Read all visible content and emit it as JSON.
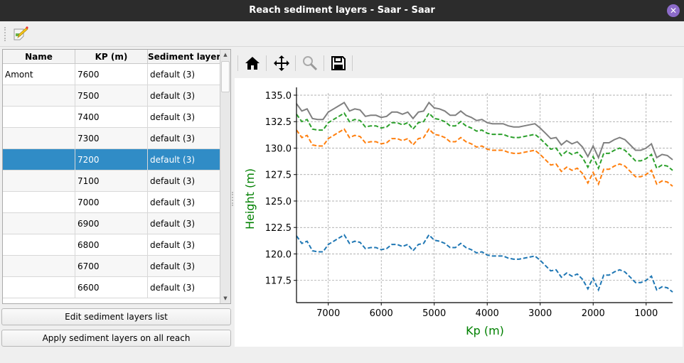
{
  "window": {
    "title": "Reach sediment layers - Saar - Saar",
    "close_icon": "close-icon"
  },
  "toolbar": {
    "edit_icon": "edit-note-icon"
  },
  "table": {
    "headers": [
      "Name",
      "KP (m)",
      "Sediment layers"
    ],
    "rows": [
      {
        "name": "Amont",
        "kp": "7600",
        "layers": "default (3)"
      },
      {
        "name": "",
        "kp": "7500",
        "layers": "default (3)"
      },
      {
        "name": "",
        "kp": "7400",
        "layers": "default (3)"
      },
      {
        "name": "",
        "kp": "7300",
        "layers": "default (3)"
      },
      {
        "name": "",
        "kp": "7200",
        "layers": "default (3)"
      },
      {
        "name": "",
        "kp": "7100",
        "layers": "default (3)"
      },
      {
        "name": "",
        "kp": "7000",
        "layers": "default (3)"
      },
      {
        "name": "",
        "kp": "6900",
        "layers": "default (3)"
      },
      {
        "name": "",
        "kp": "6800",
        "layers": "default (3)"
      },
      {
        "name": "",
        "kp": "6700",
        "layers": "default (3)"
      },
      {
        "name": "",
        "kp": "6600",
        "layers": "default (3)"
      }
    ],
    "selected_kp": "7200",
    "selection_color": "#308cc6"
  },
  "buttons": {
    "edit_list": "Edit sediment layers list",
    "apply_all": "Apply sediment layers on all reach"
  },
  "plot_toolbar": {
    "icons": [
      "home-icon",
      "pan-icon",
      "zoom-icon",
      "save-icon"
    ]
  },
  "chart_data": {
    "type": "line",
    "xlabel": "Kp (m)",
    "ylabel": "Height (m)",
    "label_color": "#008000",
    "xlim": [
      7600,
      500
    ],
    "ylim": [
      115.4,
      135.2
    ],
    "xticks": [
      7000,
      6000,
      5000,
      4000,
      3000,
      2000,
      1000
    ],
    "yticks": [
      117.5,
      120.0,
      122.5,
      125.0,
      127.5,
      130.0,
      132.5,
      135.0
    ],
    "grid": true,
    "x": [
      7600,
      7500,
      7400,
      7300,
      7200,
      7100,
      7000,
      6900,
      6800,
      6700,
      6600,
      6500,
      6400,
      6300,
      6200,
      6100,
      6000,
      5900,
      5800,
      5700,
      5600,
      5500,
      5400,
      5300,
      5200,
      5100,
      5000,
      4900,
      4800,
      4700,
      4600,
      4500,
      4400,
      4300,
      4200,
      4100,
      4000,
      3900,
      3800,
      3700,
      3600,
      3500,
      3400,
      3300,
      3200,
      3100,
      3000,
      2900,
      2800,
      2700,
      2600,
      2500,
      2400,
      2300,
      2200,
      2100,
      2000,
      1900,
      1800,
      1700,
      1600,
      1500,
      1400,
      1300,
      1200,
      1100,
      1000,
      900,
      800,
      700,
      600,
      500
    ],
    "series": [
      {
        "color": "#808080",
        "style": "solid",
        "values": [
          134.2,
          133.5,
          133.7,
          132.8,
          132.7,
          132.7,
          133.4,
          133.7,
          134.0,
          134.3,
          133.5,
          133.7,
          133.6,
          133.0,
          133.1,
          133.1,
          132.9,
          133.0,
          133.4,
          133.4,
          133.2,
          133.4,
          132.8,
          133.4,
          133.5,
          134.3,
          133.8,
          133.7,
          133.5,
          133.1,
          133.1,
          133.5,
          133.1,
          132.9,
          132.6,
          132.7,
          132.4,
          132.3,
          132.3,
          132.3,
          132.1,
          132.0,
          132.0,
          132.1,
          132.2,
          132.3,
          131.9,
          131.4,
          130.9,
          131.0,
          130.3,
          130.7,
          130.4,
          130.6,
          130.1,
          129.2,
          130.2,
          129.1,
          130.5,
          130.5,
          130.8,
          131.0,
          130.8,
          130.3,
          129.8,
          129.8,
          130.0,
          130.4,
          129.1,
          129.4,
          129.3,
          128.9
        ]
      },
      {
        "color": "#2ca02c",
        "style": "dashed",
        "values": [
          133.2,
          132.5,
          132.7,
          131.8,
          131.7,
          131.7,
          132.4,
          132.7,
          133.0,
          133.3,
          132.5,
          132.7,
          132.6,
          132.0,
          132.1,
          132.1,
          131.9,
          132.0,
          132.4,
          132.4,
          132.2,
          132.4,
          131.8,
          132.4,
          132.5,
          133.3,
          132.8,
          132.7,
          132.5,
          132.1,
          132.1,
          132.5,
          132.1,
          131.9,
          131.6,
          131.7,
          131.4,
          131.3,
          131.3,
          131.3,
          131.1,
          131.0,
          131.0,
          131.1,
          131.2,
          131.3,
          130.9,
          130.4,
          129.9,
          130.0,
          129.3,
          129.7,
          129.4,
          129.6,
          129.1,
          128.2,
          129.2,
          128.1,
          129.5,
          129.5,
          129.8,
          130.0,
          129.8,
          129.3,
          128.8,
          128.8,
          129.0,
          129.4,
          128.1,
          128.4,
          128.3,
          127.9
        ]
      },
      {
        "color": "#ff7f0e",
        "style": "dashed",
        "values": [
          131.7,
          131.0,
          131.2,
          130.3,
          130.2,
          130.2,
          130.9,
          131.2,
          131.5,
          131.8,
          131.0,
          131.2,
          131.1,
          130.5,
          130.6,
          130.6,
          130.4,
          130.5,
          130.9,
          130.9,
          130.7,
          130.9,
          130.3,
          130.9,
          131.0,
          131.8,
          131.3,
          131.2,
          131.0,
          130.6,
          130.6,
          131.0,
          130.6,
          130.4,
          130.1,
          130.2,
          129.9,
          129.8,
          129.8,
          129.8,
          129.6,
          129.5,
          129.5,
          129.6,
          129.7,
          129.8,
          129.4,
          128.9,
          128.4,
          128.5,
          127.8,
          128.2,
          127.9,
          128.1,
          127.6,
          126.7,
          127.7,
          126.6,
          128.0,
          128.0,
          128.3,
          128.5,
          128.3,
          127.8,
          127.3,
          127.3,
          127.5,
          127.9,
          126.6,
          126.9,
          126.8,
          126.4
        ]
      },
      {
        "color": "#1f77b4",
        "style": "dashed",
        "values": [
          121.7,
          121.0,
          121.2,
          120.3,
          120.2,
          120.2,
          120.9,
          121.2,
          121.5,
          121.8,
          121.0,
          121.2,
          121.1,
          120.5,
          120.6,
          120.6,
          120.4,
          120.5,
          120.9,
          120.9,
          120.7,
          120.9,
          120.3,
          120.9,
          121.0,
          121.8,
          121.3,
          121.2,
          121.0,
          120.6,
          120.6,
          121.0,
          120.6,
          120.4,
          120.1,
          120.2,
          119.9,
          119.8,
          119.8,
          119.8,
          119.6,
          119.5,
          119.5,
          119.6,
          119.7,
          119.8,
          119.4,
          118.9,
          118.4,
          118.5,
          117.8,
          118.2,
          117.9,
          118.1,
          117.6,
          116.7,
          117.7,
          116.6,
          118.0,
          118.0,
          118.3,
          118.5,
          118.3,
          117.8,
          117.3,
          117.3,
          117.5,
          117.9,
          116.6,
          116.9,
          116.8,
          116.4
        ]
      }
    ]
  }
}
